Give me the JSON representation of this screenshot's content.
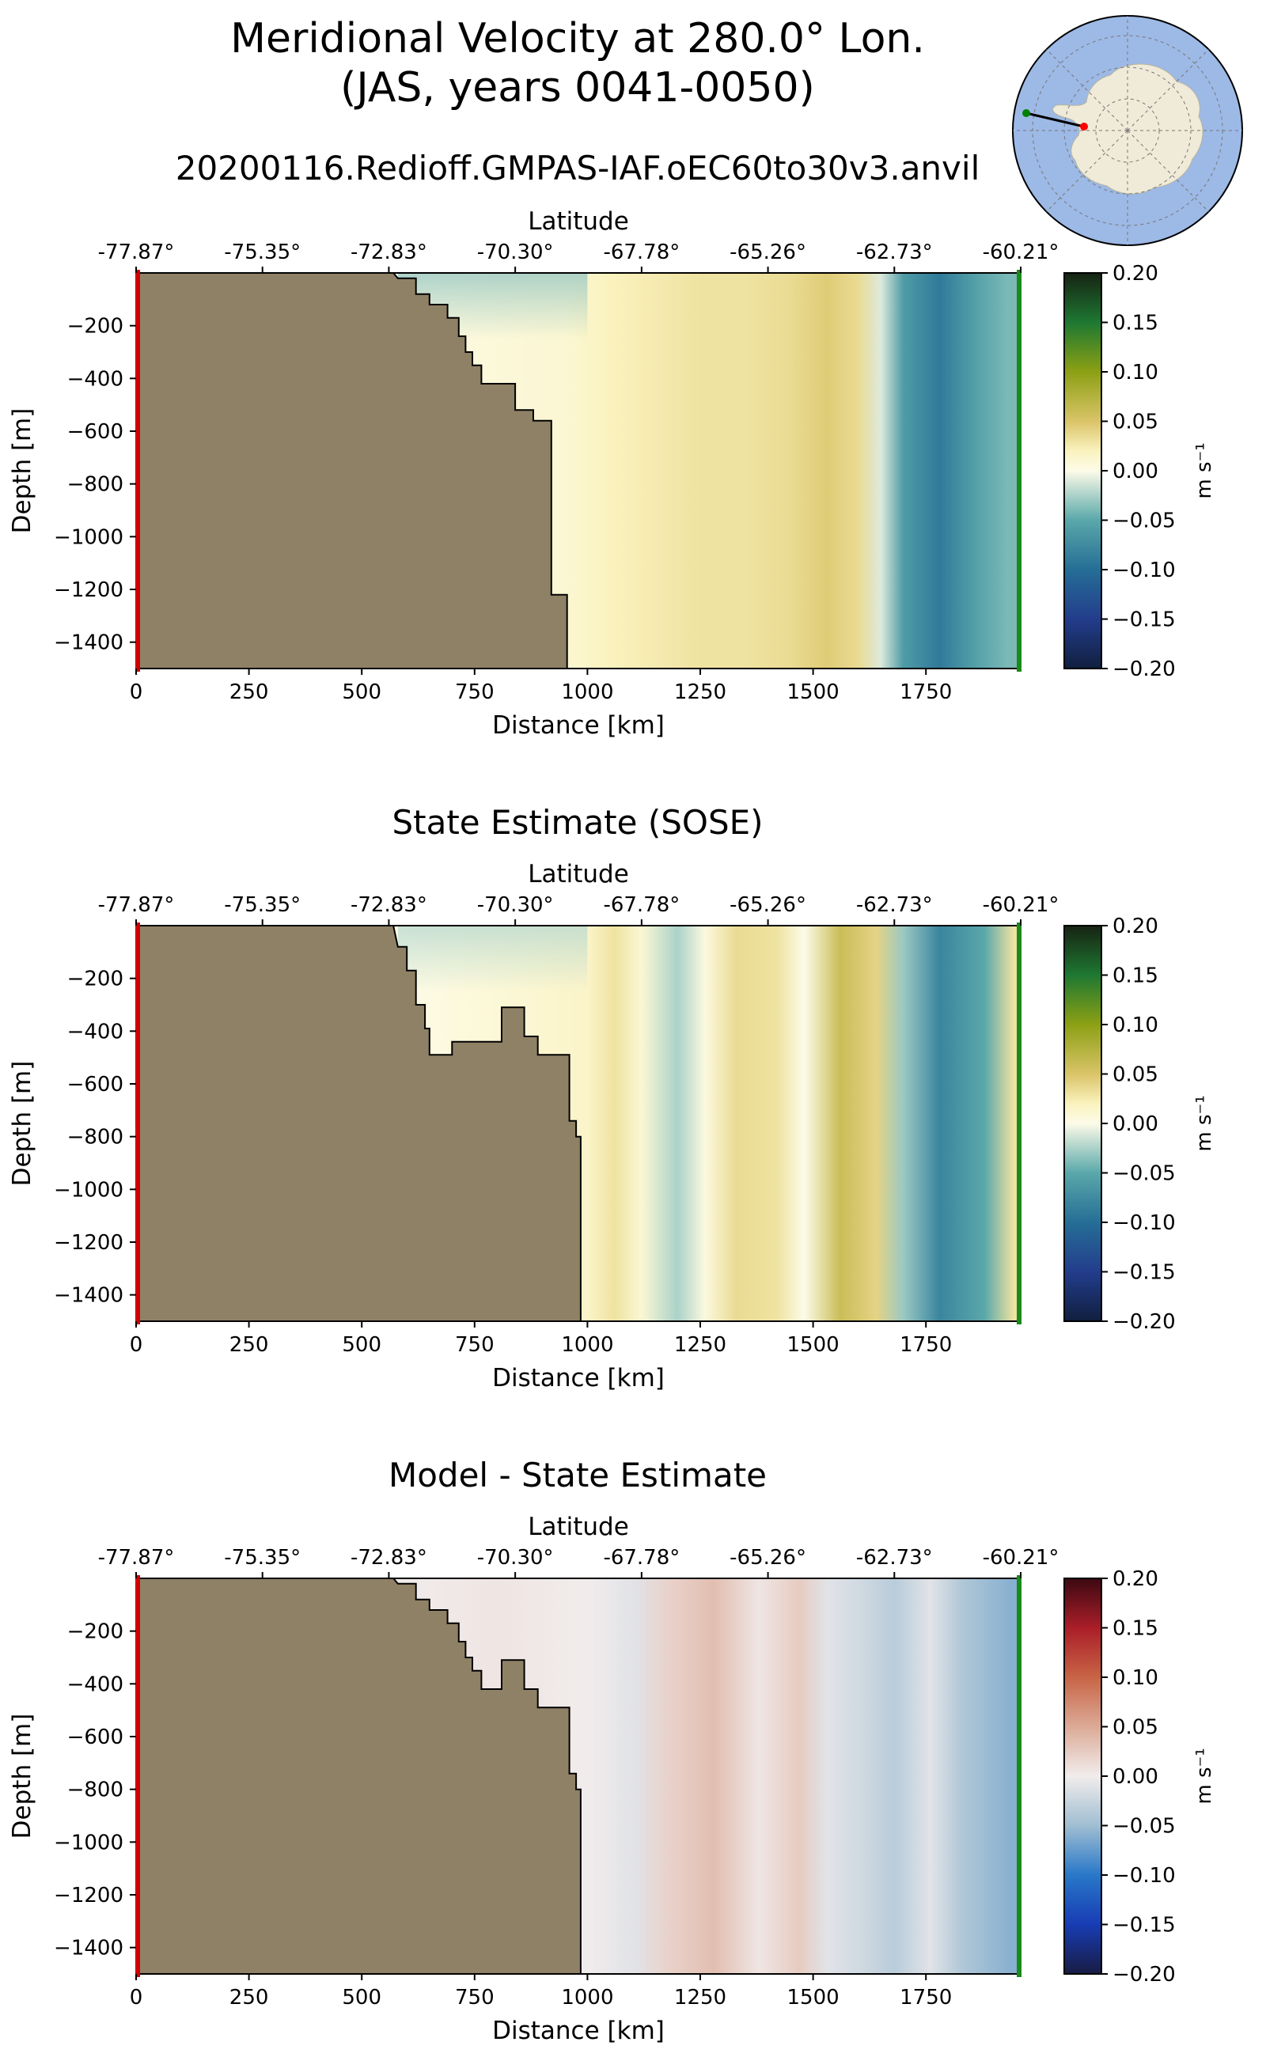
{
  "header": {
    "title_line1": "Meridional Velocity at 280.0° Lon.",
    "title_line2": "(JAS, years 0041-0050)",
    "subtitle": "20200116.Redioff.GMPAS-IAF.oEC60to30v3.anvil"
  },
  "inset_map": {
    "land_color": "#efebd8",
    "ocean_color": "#9db9e6",
    "start_marker_color": "#ff0000",
    "end_marker_color": "#008000"
  },
  "chart_data": [
    {
      "type": "heatmap",
      "title": "",
      "xlabel": "Distance [km]",
      "ylabel": "Depth [m]",
      "top_axis_label": "Latitude",
      "latitude_ticks": [
        "-77.87°",
        "-75.35°",
        "-72.83°",
        "-70.30°",
        "-67.78°",
        "-65.26°",
        "-62.73°",
        "-60.21°"
      ],
      "x_ticks": [
        0,
        250,
        500,
        750,
        1000,
        1250,
        1500,
        1750
      ],
      "y_ticks": [
        -200,
        -400,
        -600,
        -800,
        -1000,
        -1200,
        -1400
      ],
      "xlim": [
        0,
        1960
      ],
      "ylim": [
        -1500,
        0
      ],
      "colorbar": {
        "label": "m s⁻¹",
        "ticks": [
          "0.20",
          "0.15",
          "0.10",
          "0.05",
          "0.00",
          "−0.05",
          "−0.10",
          "−0.15",
          "−0.20"
        ],
        "vmin": -0.2,
        "vmax": 0.2,
        "cmap": "delta"
      },
      "bathymetry": [
        [
          0,
          0
        ],
        [
          570,
          0
        ],
        [
          580,
          -20
        ],
        [
          620,
          -20
        ],
        [
          620,
          -80
        ],
        [
          650,
          -80
        ],
        [
          650,
          -120
        ],
        [
          690,
          -120
        ],
        [
          690,
          -170
        ],
        [
          715,
          -170
        ],
        [
          715,
          -240
        ],
        [
          730,
          -240
        ],
        [
          730,
          -300
        ],
        [
          745,
          -300
        ],
        [
          745,
          -350
        ],
        [
          765,
          -350
        ],
        [
          765,
          -420
        ],
        [
          840,
          -420
        ],
        [
          840,
          -520
        ],
        [
          880,
          -520
        ],
        [
          880,
          -560
        ],
        [
          920,
          -560
        ],
        [
          920,
          -1220
        ],
        [
          955,
          -1220
        ],
        [
          955,
          -1500
        ],
        [
          0,
          -1500
        ]
      ],
      "velocity_columns": [
        {
          "x": 580,
          "v": 0.0,
          "top_v": -0.03
        },
        {
          "x": 700,
          "v": 0.005
        },
        {
          "x": 850,
          "v": 0.008
        },
        {
          "x": 950,
          "v": 0.01
        },
        {
          "x": 1050,
          "v": 0.02
        },
        {
          "x": 1150,
          "v": 0.025
        },
        {
          "x": 1250,
          "v": 0.03
        },
        {
          "x": 1350,
          "v": 0.03
        },
        {
          "x": 1450,
          "v": 0.035
        },
        {
          "x": 1530,
          "v": 0.045
        },
        {
          "x": 1600,
          "v": 0.035
        },
        {
          "x": 1650,
          "v": -0.01
        },
        {
          "x": 1700,
          "v": -0.06
        },
        {
          "x": 1780,
          "v": -0.09
        },
        {
          "x": 1850,
          "v": -0.06
        },
        {
          "x": 1930,
          "v": -0.04
        }
      ]
    },
    {
      "type": "heatmap",
      "title": "State Estimate (SOSE)",
      "xlabel": "Distance [km]",
      "ylabel": "Depth [m]",
      "top_axis_label": "Latitude",
      "latitude_ticks": [
        "-77.87°",
        "-75.35°",
        "-72.83°",
        "-70.30°",
        "-67.78°",
        "-65.26°",
        "-62.73°",
        "-60.21°"
      ],
      "x_ticks": [
        0,
        250,
        500,
        750,
        1000,
        1250,
        1500,
        1750
      ],
      "y_ticks": [
        -200,
        -400,
        -600,
        -800,
        -1000,
        -1200,
        -1400
      ],
      "xlim": [
        0,
        1960
      ],
      "ylim": [
        -1500,
        0
      ],
      "colorbar": {
        "label": "m s⁻¹",
        "ticks": [
          "0.20",
          "0.15",
          "0.10",
          "0.05",
          "0.00",
          "−0.05",
          "−0.10",
          "−0.15",
          "−0.20"
        ],
        "vmin": -0.2,
        "vmax": 0.2,
        "cmap": "delta"
      },
      "bathymetry": [
        [
          0,
          0
        ],
        [
          570,
          0
        ],
        [
          580,
          -80
        ],
        [
          600,
          -80
        ],
        [
          600,
          -170
        ],
        [
          620,
          -170
        ],
        [
          620,
          -300
        ],
        [
          640,
          -300
        ],
        [
          640,
          -390
        ],
        [
          650,
          -390
        ],
        [
          650,
          -490
        ],
        [
          700,
          -490
        ],
        [
          700,
          -440
        ],
        [
          810,
          -440
        ],
        [
          810,
          -310
        ],
        [
          860,
          -310
        ],
        [
          860,
          -420
        ],
        [
          890,
          -420
        ],
        [
          890,
          -490
        ],
        [
          960,
          -490
        ],
        [
          960,
          -740
        ],
        [
          975,
          -740
        ],
        [
          975,
          -800
        ],
        [
          985,
          -800
        ],
        [
          985,
          -1500
        ],
        [
          0,
          -1500
        ]
      ],
      "velocity_columns": [
        {
          "x": 580,
          "v": 0.0,
          "top_v": -0.02
        },
        {
          "x": 700,
          "v": 0.005
        },
        {
          "x": 850,
          "v": 0.01
        },
        {
          "x": 1000,
          "v": 0.015
        },
        {
          "x": 1060,
          "v": 0.03
        },
        {
          "x": 1120,
          "v": 0.01
        },
        {
          "x": 1200,
          "v": -0.025
        },
        {
          "x": 1260,
          "v": 0.005
        },
        {
          "x": 1330,
          "v": 0.035
        },
        {
          "x": 1420,
          "v": 0.03
        },
        {
          "x": 1480,
          "v": 0.0
        },
        {
          "x": 1560,
          "v": 0.06
        },
        {
          "x": 1640,
          "v": 0.04
        },
        {
          "x": 1700,
          "v": -0.03
        },
        {
          "x": 1780,
          "v": -0.08
        },
        {
          "x": 1880,
          "v": -0.05
        },
        {
          "x": 1945,
          "v": 0.03
        }
      ]
    },
    {
      "type": "heatmap",
      "title": "Model - State Estimate",
      "xlabel": "Distance [km]",
      "ylabel": "Depth [m]",
      "top_axis_label": "Latitude",
      "latitude_ticks": [
        "-77.87°",
        "-75.35°",
        "-72.83°",
        "-70.30°",
        "-67.78°",
        "-65.26°",
        "-62.73°",
        "-60.21°"
      ],
      "x_ticks": [
        0,
        250,
        500,
        750,
        1000,
        1250,
        1500,
        1750
      ],
      "y_ticks": [
        -200,
        -400,
        -600,
        -800,
        -1000,
        -1200,
        -1400
      ],
      "xlim": [
        0,
        1960
      ],
      "ylim": [
        -1500,
        0
      ],
      "colorbar": {
        "label": "m s⁻¹",
        "ticks": [
          "0.20",
          "0.15",
          "0.10",
          "0.05",
          "0.00",
          "−0.05",
          "−0.10",
          "−0.15",
          "−0.20"
        ],
        "vmin": -0.2,
        "vmax": 0.2,
        "cmap": "balance"
      },
      "bathymetry": [
        [
          0,
          0
        ],
        [
          570,
          0
        ],
        [
          580,
          -20
        ],
        [
          620,
          -20
        ],
        [
          620,
          -80
        ],
        [
          650,
          -80
        ],
        [
          650,
          -120
        ],
        [
          690,
          -120
        ],
        [
          690,
          -170
        ],
        [
          715,
          -170
        ],
        [
          715,
          -240
        ],
        [
          730,
          -240
        ],
        [
          730,
          -300
        ],
        [
          745,
          -300
        ],
        [
          745,
          -350
        ],
        [
          765,
          -350
        ],
        [
          765,
          -420
        ],
        [
          810,
          -420
        ],
        [
          810,
          -310
        ],
        [
          860,
          -310
        ],
        [
          860,
          -420
        ],
        [
          890,
          -420
        ],
        [
          890,
          -490
        ],
        [
          960,
          -490
        ],
        [
          960,
          -740
        ],
        [
          975,
          -740
        ],
        [
          975,
          -800
        ],
        [
          985,
          -800
        ],
        [
          985,
          -1500
        ],
        [
          0,
          -1500
        ]
      ],
      "velocity_columns": [
        {
          "x": 580,
          "v": 0.0
        },
        {
          "x": 800,
          "v": 0.005
        },
        {
          "x": 1000,
          "v": 0.0
        },
        {
          "x": 1100,
          "v": -0.01
        },
        {
          "x": 1180,
          "v": 0.02
        },
        {
          "x": 1280,
          "v": 0.035
        },
        {
          "x": 1380,
          "v": 0.005
        },
        {
          "x": 1470,
          "v": 0.025
        },
        {
          "x": 1530,
          "v": -0.01
        },
        {
          "x": 1600,
          "v": -0.02
        },
        {
          "x": 1680,
          "v": -0.035
        },
        {
          "x": 1760,
          "v": -0.01
        },
        {
          "x": 1830,
          "v": -0.04
        },
        {
          "x": 1940,
          "v": -0.06
        }
      ]
    }
  ]
}
